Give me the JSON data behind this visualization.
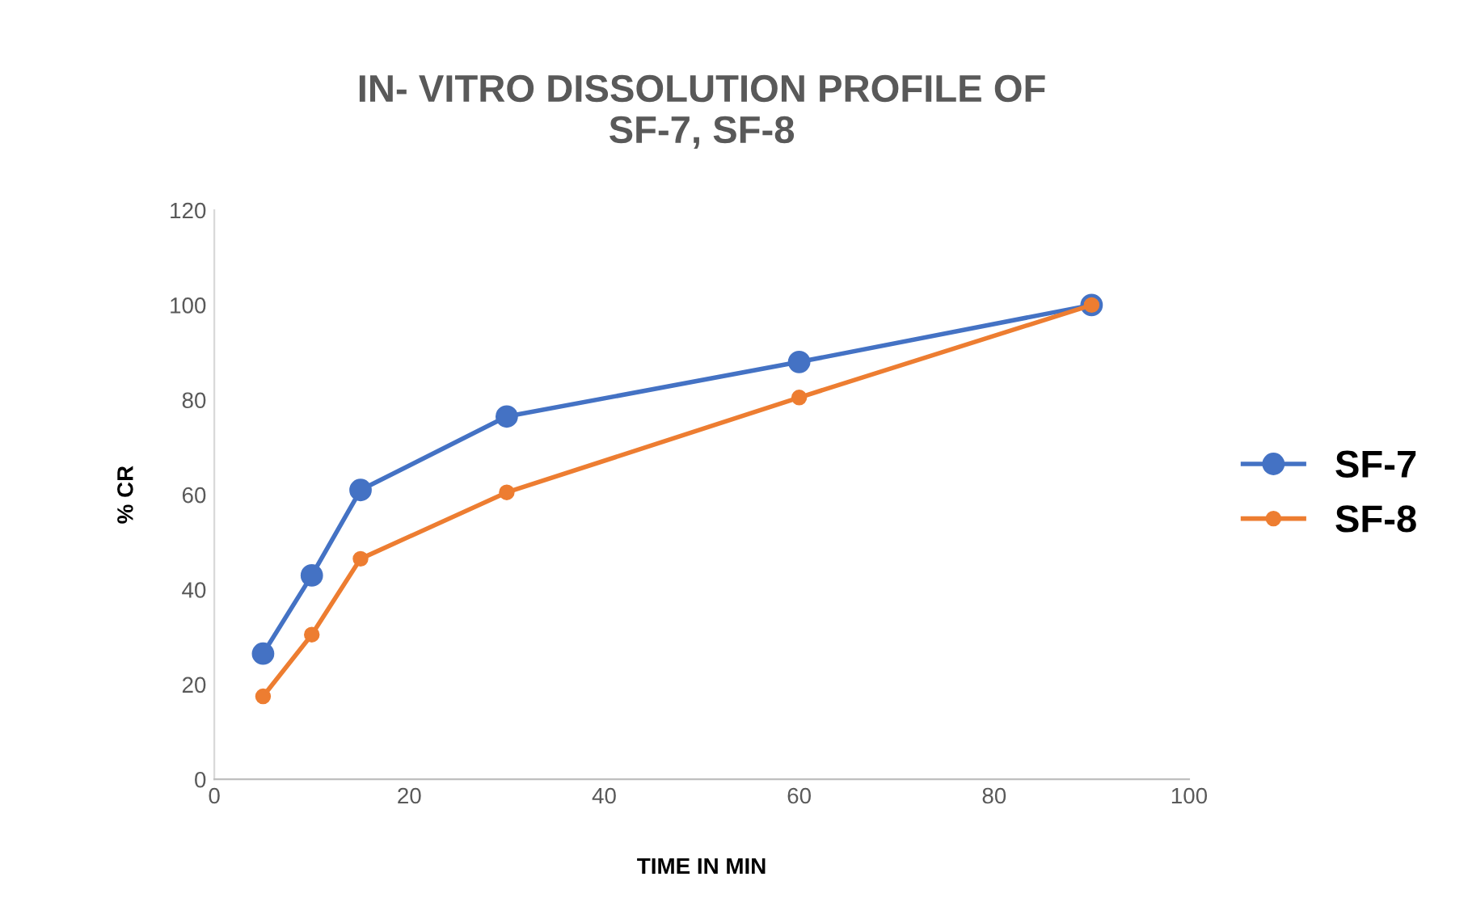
{
  "chart_data": {
    "type": "line",
    "title": "IN- VITRO DISSOLUTION PROFILE OF\nSF-7, SF-8",
    "xlabel": "TIME IN MIN",
    "ylabel": "% CR",
    "x": [
      5,
      10,
      15,
      30,
      60,
      90
    ],
    "series": [
      {
        "name": "SF-7",
        "color": "#4472c4",
        "values": [
          26.5,
          43,
          61,
          76.5,
          88,
          100
        ]
      },
      {
        "name": "SF-8",
        "color": "#ed7d31",
        "values": [
          17.5,
          30.5,
          46.5,
          60.5,
          80.5,
          100
        ]
      }
    ],
    "xlim": [
      0,
      100
    ],
    "xticks": [
      0,
      20,
      40,
      60,
      80,
      100
    ],
    "ylim": [
      0,
      120
    ],
    "yticks": [
      0,
      20,
      40,
      60,
      80,
      100,
      120
    ],
    "grid": false,
    "legend": "right",
    "marker": "circle",
    "line_style": "solid"
  }
}
